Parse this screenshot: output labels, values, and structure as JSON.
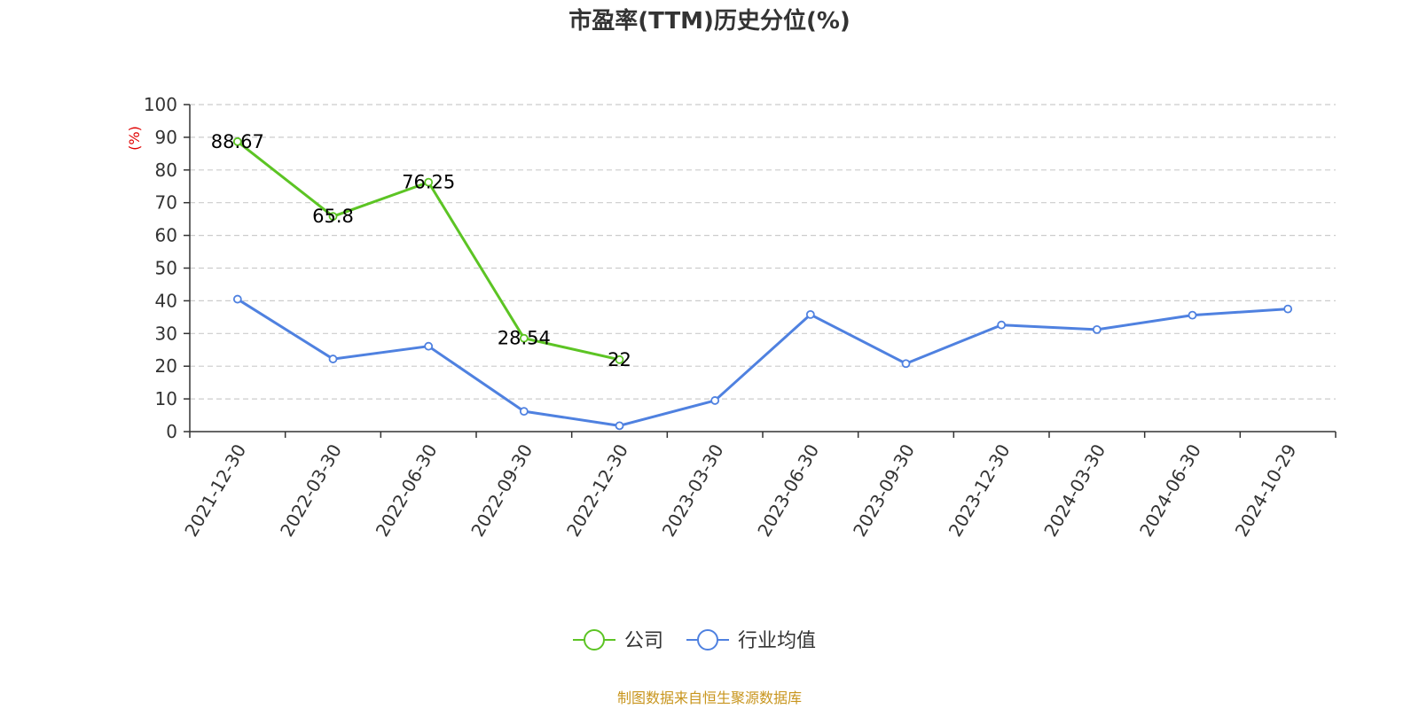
{
  "chart_data": {
    "type": "line",
    "title": "市盈率(TTM)历史分位(%)",
    "ylabel": "(%)",
    "xlabel": "",
    "ylim": [
      0,
      100
    ],
    "yticks": [
      0,
      10,
      20,
      30,
      40,
      50,
      60,
      70,
      80,
      90,
      100
    ],
    "categories": [
      "2021-12-30",
      "2022-03-30",
      "2022-06-30",
      "2022-09-30",
      "2022-12-30",
      "2023-03-30",
      "2023-06-30",
      "2023-09-30",
      "2023-12-30",
      "2024-03-30",
      "2024-06-30",
      "2024-10-29"
    ],
    "grid": true,
    "legend_position": "bottom",
    "series": [
      {
        "name": "公司",
        "color": "#5cc424",
        "values": [
          88.67,
          65.8,
          76.25,
          28.54,
          22,
          null,
          null,
          null,
          null,
          null,
          null,
          null
        ],
        "data_labels": true
      },
      {
        "name": "行业均值",
        "color": "#4f81e0",
        "values": [
          40.5,
          22.2,
          26.1,
          6.2,
          1.8,
          9.5,
          35.8,
          20.8,
          32.6,
          31.2,
          35.6,
          37.5
        ],
        "data_labels": false
      }
    ],
    "source": "制图数据来自恒生聚源数据库",
    "colors": {
      "axis": "#333333",
      "grid": "#cccccc",
      "unit": "#e00000",
      "source": "#c8951d"
    }
  }
}
